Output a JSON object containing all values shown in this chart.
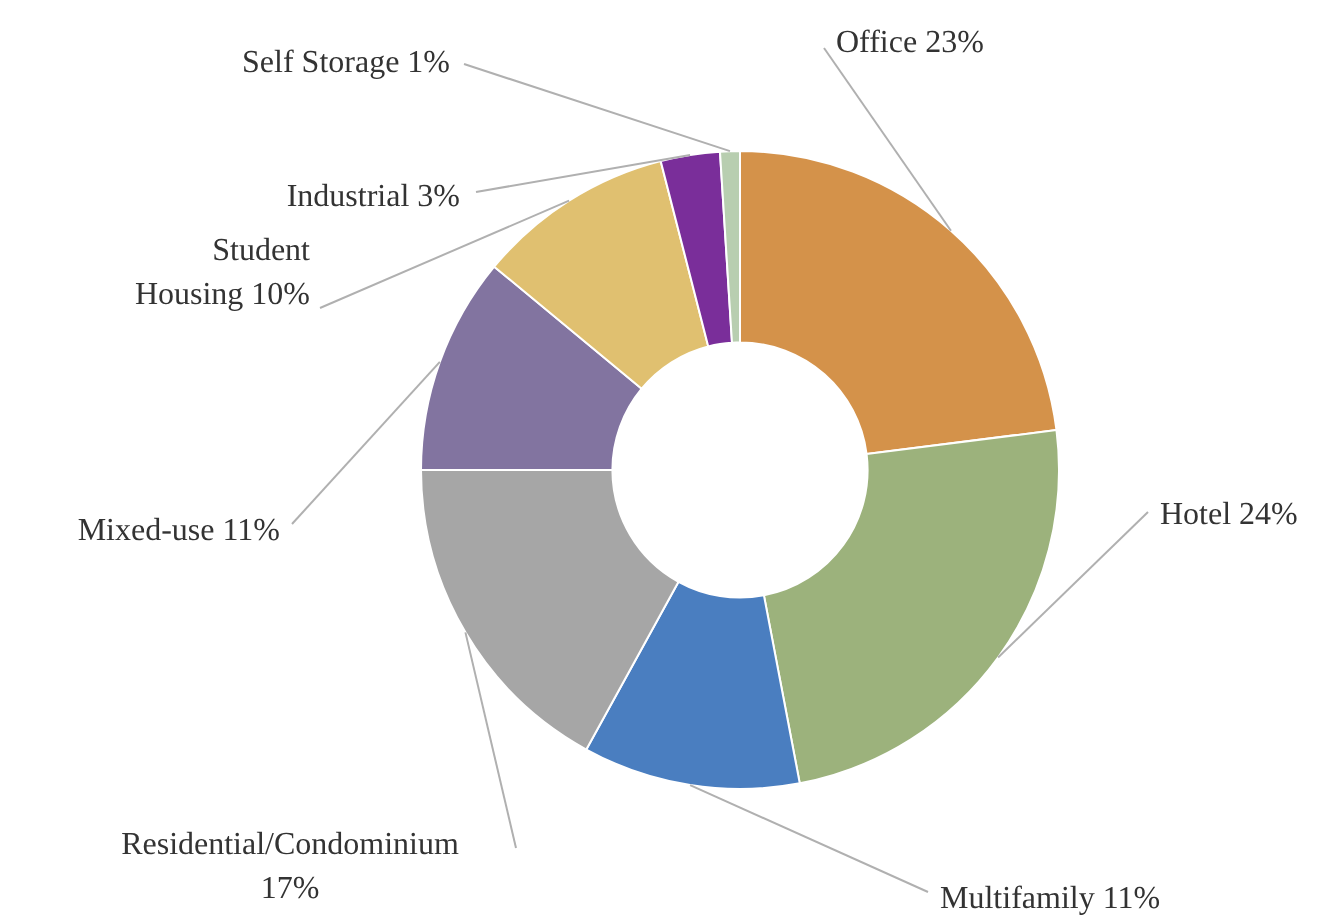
{
  "chart_data": {
    "type": "donut",
    "categories": [
      "Office",
      "Hotel",
      "Multifamily",
      "Residential/Condominium",
      "Mixed-use",
      "Student Housing",
      "Industrial",
      "Self Storage"
    ],
    "values": [
      23,
      24,
      11,
      17,
      11,
      10,
      3,
      1
    ],
    "value_labels": [
      "23%",
      "24%",
      "11%",
      "17%",
      "11%",
      "10%",
      "3%",
      "1%"
    ],
    "colors": [
      "#d4924a",
      "#9cb27c",
      "#4a7ec0",
      "#a6a6a6",
      "#8274a0",
      "#e0c070",
      "#7a2e9a",
      "#b8ceb0"
    ],
    "legend": false
  }
}
